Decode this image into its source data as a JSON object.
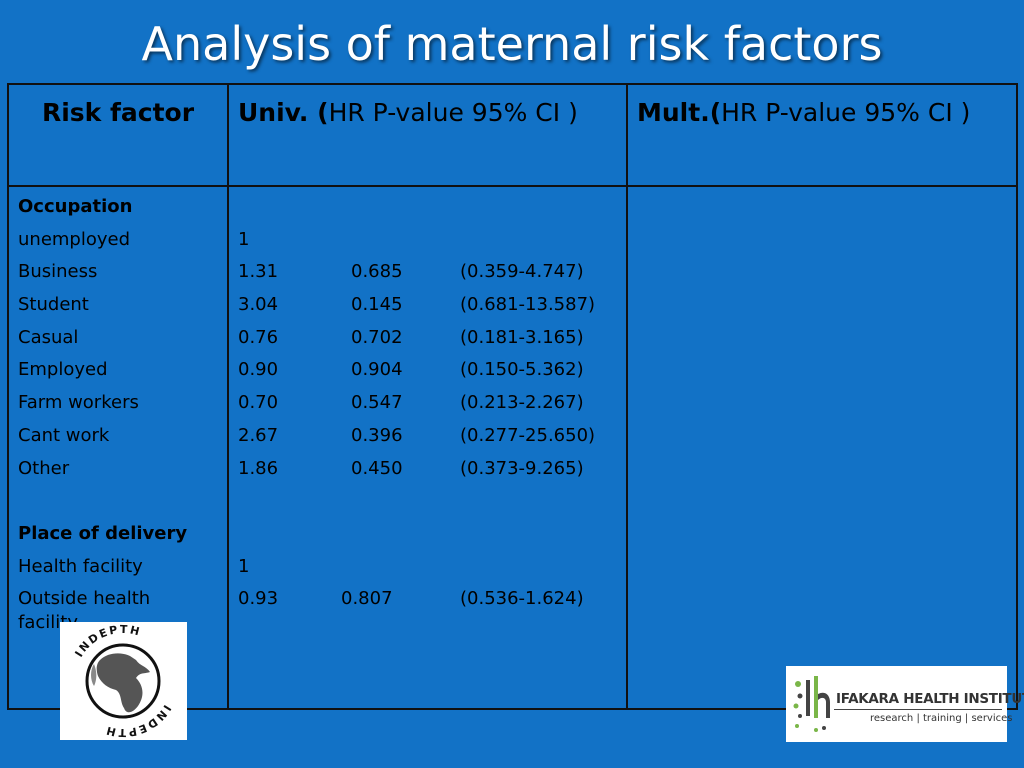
{
  "title": "Analysis of maternal risk factors",
  "header": {
    "col1": "Risk factor",
    "col2_bold": "Univ. (",
    "col2_rest": "HR P-value 95% CI )",
    "col3_bold": "Mult.(",
    "col3_rest": "HR P-value 95% CI )"
  },
  "sections": {
    "occupation": {
      "label": "Occupation",
      "rows": [
        {
          "factor": "unemployed",
          "hr": "1",
          "p": "",
          "ci": ""
        },
        {
          "factor": "Business",
          "hr": "1.31",
          "p": "0.685",
          "ci": "(0.359-4.747)"
        },
        {
          "factor": "Student",
          "hr": "3.04",
          "p": "0.145",
          "ci": "(0.681-13.587)"
        },
        {
          "factor": "Casual",
          "hr": "0.76",
          "p": "0.702",
          "ci": "(0.181-3.165)"
        },
        {
          "factor": "Employed",
          "hr": "0.90",
          "p": "0.904",
          "ci": "(0.150-5.362)"
        },
        {
          "factor": "Farm workers",
          "hr": "0.70",
          "p": "0.547",
          "ci": "(0.213-2.267)"
        },
        {
          "factor": "Cant work",
          "hr": "2.67",
          "p": "0.396",
          "ci": "(0.277-25.650)"
        },
        {
          "factor": "Other",
          "hr": "1.86",
          "p": "0.450",
          "ci": "(0.373-9.265)"
        }
      ]
    },
    "delivery": {
      "label": "Place of delivery",
      "rows": [
        {
          "factor": "Health facility",
          "hr": "1",
          "p": "",
          "ci": ""
        },
        {
          "factor": "Outside health facility",
          "hr": "0.93",
          "p": "0.807",
          "ci": "(0.536-1.624)"
        }
      ]
    }
  },
  "logos": {
    "indepth": "INDEPTH",
    "ihi_name": "IFAKARA HEALTH INSTITUTE",
    "ihi_tagline": "research | training | services"
  },
  "colors": {
    "background": "#1272c6",
    "title": "#ffffff"
  }
}
